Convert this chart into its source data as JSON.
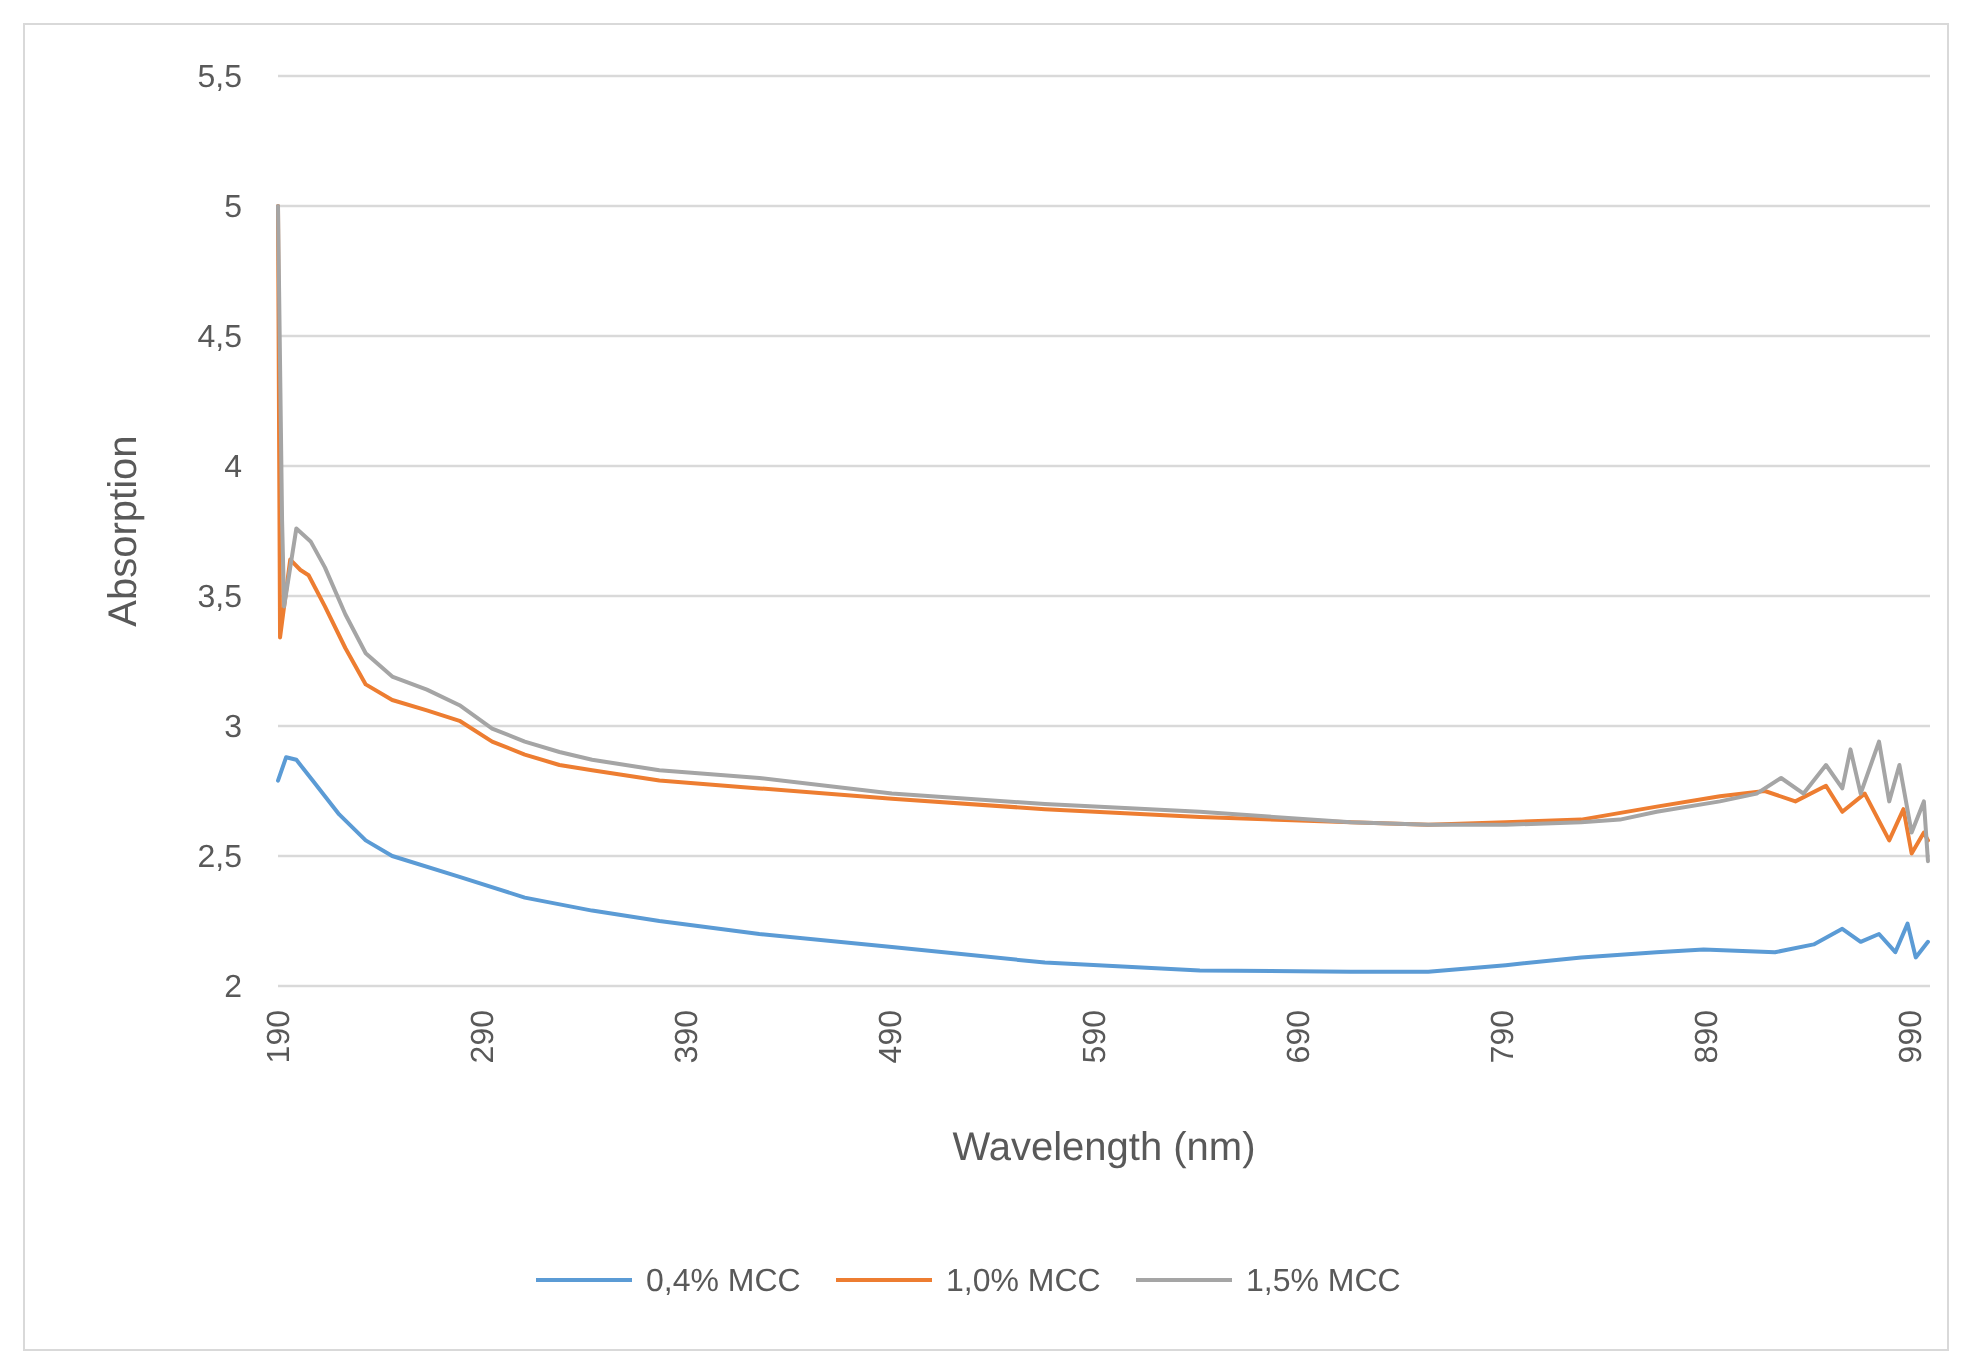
{
  "chart_data": {
    "type": "line",
    "xlabel": "Wavelength (nm)",
    "ylabel": "Absorption",
    "xlim": [
      190,
      1000
    ],
    "xticks": [
      190,
      290,
      390,
      490,
      590,
      690,
      790,
      890,
      990
    ],
    "ylim": [
      2,
      5.5
    ],
    "yticks": [
      2,
      {
        "value": 2.5,
        "label": "2,5"
      },
      3,
      {
        "value": 3.5,
        "label": "3,5"
      },
      4,
      {
        "value": 4.5,
        "label": "4,5"
      },
      5,
      {
        "value": 5.5,
        "label": "5,5"
      }
    ],
    "grid": "y",
    "legend": "bottom",
    "line_style": "solid",
    "marker": "none",
    "series": [
      {
        "name": "0,4% MCC",
        "color": "#5b9bd5",
        "x": [
          190,
          194,
          199,
          207,
          220,
          233,
          246,
          279,
          311,
          344,
          377,
          426,
          491,
          566,
          642,
          716,
          754,
          792,
          829,
          866,
          889,
          924,
          943,
          957,
          966,
          975,
          983,
          989,
          993,
          999
        ],
        "values": [
          2.79,
          2.88,
          2.87,
          2.79,
          2.66,
          2.56,
          2.5,
          2.42,
          2.34,
          2.29,
          2.25,
          2.2,
          2.15,
          2.09,
          2.06,
          2.055,
          2.055,
          2.08,
          2.11,
          2.13,
          2.14,
          2.13,
          2.16,
          2.22,
          2.17,
          2.2,
          2.13,
          2.24,
          2.11,
          2.17
        ]
      },
      {
        "name": "1,0% MCC",
        "color": "#ed7d31",
        "x": [
          190,
          191,
          196,
          201,
          205,
          213,
          223,
          233,
          246,
          263,
          279,
          295,
          311,
          328,
          344,
          377,
          426,
          491,
          566,
          642,
          716,
          754,
          792,
          829,
          866,
          897,
          919,
          934,
          949,
          957,
          968,
          980,
          987,
          991,
          997,
          999
        ],
        "values": [
          5,
          3.34,
          3.64,
          3.6,
          3.58,
          3.46,
          3.3,
          3.16,
          3.1,
          3.06,
          3.02,
          2.94,
          2.89,
          2.85,
          2.83,
          2.79,
          2.76,
          2.72,
          2.68,
          2.65,
          2.63,
          2.62,
          2.63,
          2.64,
          2.69,
          2.73,
          2.75,
          2.71,
          2.77,
          2.67,
          2.74,
          2.56,
          2.68,
          2.51,
          2.59,
          2.56
        ]
      },
      {
        "name": "1,5% MCC",
        "color": "#a5a5a5",
        "x": [
          190,
          192,
          193,
          199,
          206,
          213,
          223,
          233,
          246,
          263,
          279,
          295,
          311,
          328,
          344,
          377,
          426,
          491,
          566,
          642,
          716,
          754,
          792,
          829,
          848,
          866,
          897,
          915,
          927,
          938,
          949,
          957,
          961,
          966,
          975,
          980,
          985,
          991,
          997,
          999
        ],
        "values": [
          5,
          3.79,
          3.46,
          3.76,
          3.71,
          3.61,
          3.43,
          3.28,
          3.19,
          3.14,
          3.08,
          2.99,
          2.94,
          2.9,
          2.87,
          2.83,
          2.8,
          2.74,
          2.7,
          2.67,
          2.63,
          2.62,
          2.62,
          2.63,
          2.64,
          2.67,
          2.71,
          2.74,
          2.8,
          2.74,
          2.85,
          2.76,
          2.91,
          2.74,
          2.94,
          2.71,
          2.85,
          2.59,
          2.71,
          2.48
        ]
      }
    ]
  }
}
